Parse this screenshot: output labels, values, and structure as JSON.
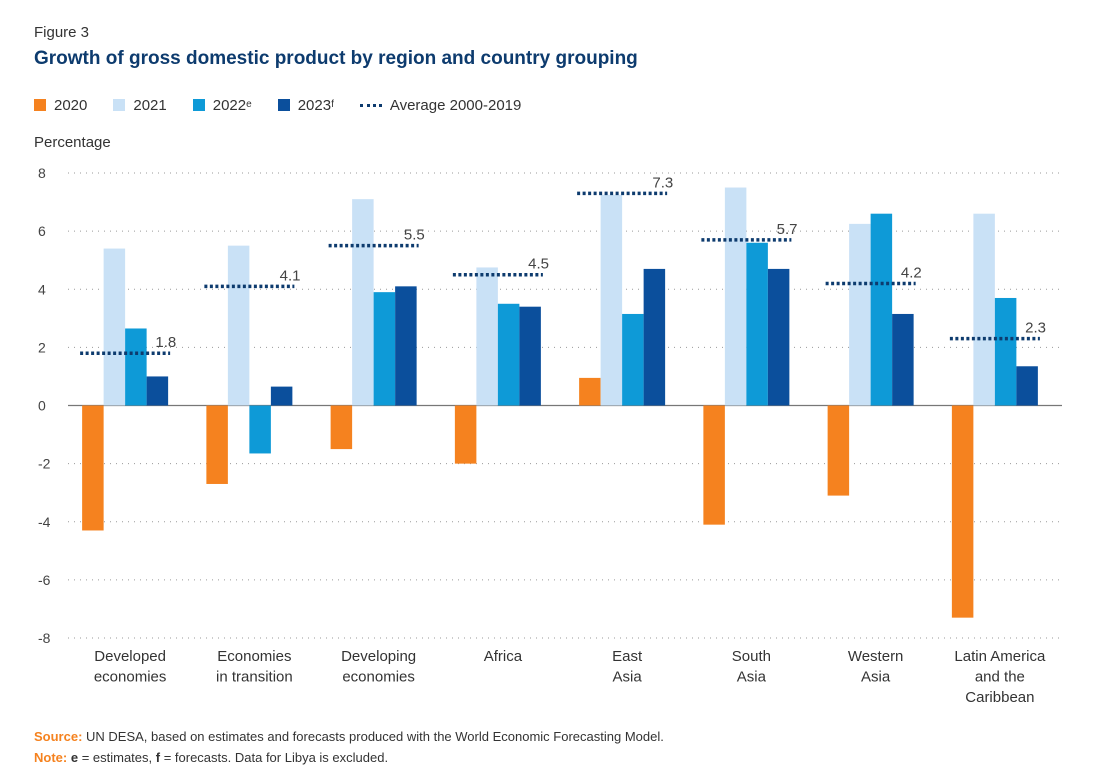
{
  "figure_label": "Figure 3",
  "title": "Growth of gross domestic product by region and country grouping",
  "legend": [
    {
      "label": "2020",
      "sup": "",
      "color": "#f5821f",
      "type": "bar"
    },
    {
      "label": "2021",
      "sup": "",
      "color": "#c9e1f6",
      "type": "bar"
    },
    {
      "label": "2022",
      "sup": "e",
      "color": "#0e9ad7",
      "type": "bar"
    },
    {
      "label": "2023",
      "sup": "f",
      "color": "#0b4f9c",
      "type": "bar"
    },
    {
      "label": "Average 2000-2019",
      "sup": "",
      "color": "#0d3b6e",
      "type": "dotted-line"
    }
  ],
  "chart_data": {
    "type": "bar",
    "ylabel": "Percentage",
    "ylim": [
      -8,
      8
    ],
    "yticks": [
      8,
      6,
      4,
      2,
      0,
      -2,
      -4,
      -6,
      -8
    ],
    "grid": "horizontal dotted",
    "categories": [
      [
        "Developed",
        "economies"
      ],
      [
        "Economies",
        "in transition"
      ],
      [
        "Developing",
        "economies"
      ],
      [
        "Africa"
      ],
      [
        "East",
        "Asia"
      ],
      [
        "South",
        "Asia"
      ],
      [
        "Western",
        "Asia"
      ],
      [
        "Latin America",
        "and the",
        "Caribbean"
      ]
    ],
    "series": [
      {
        "name": "2020",
        "color": "#f5821f",
        "values": [
          -4.3,
          -2.7,
          -1.5,
          -2.0,
          0.95,
          -4.1,
          -3.1,
          -7.3
        ]
      },
      {
        "name": "2021",
        "color": "#c9e1f6",
        "values": [
          5.4,
          5.5,
          7.1,
          4.75,
          7.25,
          7.5,
          6.25,
          6.6
        ]
      },
      {
        "name": "2022",
        "color": "#0e9ad7",
        "values": [
          2.65,
          -1.65,
          3.9,
          3.5,
          3.15,
          5.6,
          6.6,
          3.7
        ]
      },
      {
        "name": "2023",
        "color": "#0b4f9c",
        "values": [
          1.0,
          0.65,
          4.1,
          3.4,
          4.7,
          4.7,
          3.15,
          1.35
        ]
      }
    ],
    "average": {
      "name": "Average 2000-2019",
      "values": [
        1.8,
        4.1,
        5.5,
        4.5,
        7.3,
        5.7,
        4.2,
        2.3
      ],
      "labels": [
        "1.8",
        "4.1",
        "5.5",
        "4.5",
        "7.3",
        "5.7",
        "4.2",
        "2.3"
      ]
    }
  },
  "source": {
    "key": "Source:",
    "text": " UN DESA, based on estimates and forecasts produced with the World Economic Forecasting Model."
  },
  "note": {
    "key": "Note:",
    "e": "e",
    "e_text": " = estimates, ",
    "f": "f",
    "f_text": " = forecasts. Data for Libya is excluded."
  }
}
